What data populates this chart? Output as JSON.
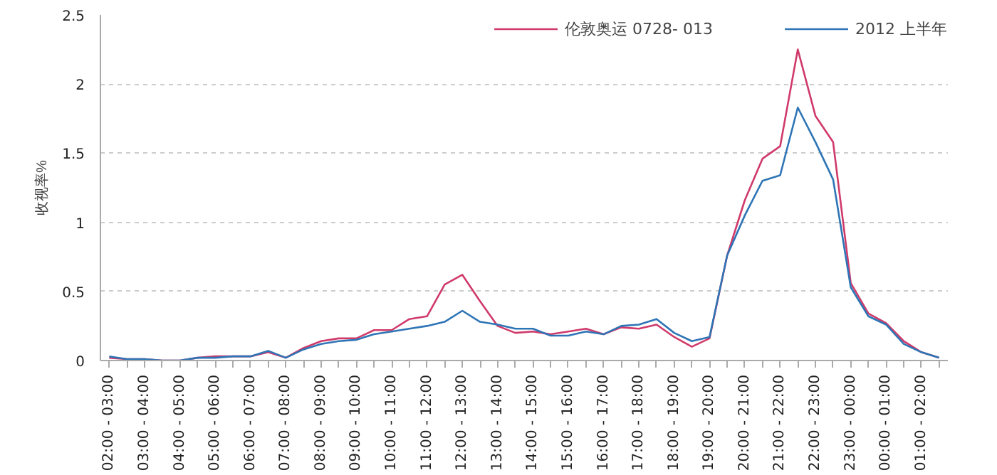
{
  "chart_data": {
    "type": "line",
    "ylabel": "收视率%",
    "categories": [
      "02:00 - 03:00",
      null,
      "03:00 - 04:00",
      null,
      "04:00 - 05:00",
      null,
      "05:00 - 06:00",
      null,
      "06:00 - 07:00",
      null,
      "07:00 - 08:00",
      null,
      "08:00 - 09:00",
      null,
      "09:00 - 10:00",
      null,
      "10:00 - 11:00",
      null,
      "11:00 - 12:00",
      null,
      "12:00 - 13:00",
      null,
      "13:00 - 14:00",
      null,
      "14:00 - 15:00",
      null,
      "15:00 - 16:00",
      null,
      "16:00 - 17:00",
      null,
      "17:00 - 18:00",
      null,
      "18:00 - 19:00",
      null,
      "19:00 - 20:00",
      null,
      "20:00 - 21:00",
      null,
      "21:00 - 22:00",
      null,
      "22:00 - 23:00",
      null,
      "23:00 - 00:00",
      null,
      "00:00 - 01:00",
      null,
      "01:00 - 02:00",
      null
    ],
    "series": [
      {
        "name": "伦敦奥运 0728- 013",
        "color": "#d03a6a",
        "values": [
          0.02,
          0.01,
          0.01,
          0.0,
          0.0,
          0.02,
          0.03,
          0.03,
          0.03,
          0.06,
          0.02,
          0.09,
          0.14,
          0.16,
          0.16,
          0.22,
          0.22,
          0.3,
          0.32,
          0.55,
          0.62,
          0.43,
          0.25,
          0.2,
          0.21,
          0.19,
          0.21,
          0.23,
          0.19,
          0.24,
          0.23,
          0.26,
          0.17,
          0.1,
          0.16,
          0.76,
          1.16,
          1.46,
          1.55,
          2.25,
          1.77,
          1.58,
          0.56,
          0.34,
          0.27,
          0.14,
          0.06,
          0.02
        ]
      },
      {
        "name": "2012 上半年",
        "color": "#2e75b6",
        "values": [
          0.03,
          0.01,
          0.01,
          0.0,
          0.0,
          0.02,
          0.02,
          0.03,
          0.03,
          0.07,
          0.02,
          0.08,
          0.12,
          0.14,
          0.15,
          0.19,
          0.21,
          0.23,
          0.25,
          0.28,
          0.36,
          0.28,
          0.26,
          0.23,
          0.23,
          0.18,
          0.18,
          0.21,
          0.19,
          0.25,
          0.26,
          0.3,
          0.2,
          0.14,
          0.17,
          0.76,
          1.05,
          1.3,
          1.34,
          1.83,
          1.58,
          1.31,
          0.53,
          0.32,
          0.26,
          0.12,
          0.06,
          0.02
        ]
      }
    ],
    "ylim": [
      0,
      2.5
    ],
    "yticks": [
      0,
      0.5,
      1,
      1.5,
      2,
      2.5
    ],
    "grid": "y",
    "legend": "top"
  }
}
